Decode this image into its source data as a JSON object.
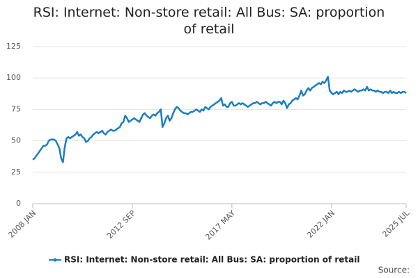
{
  "chart_data": {
    "type": "line",
    "title": "RSI: Internet: Non-store retail: All Bus: SA: proportion of retail",
    "source": "Source:",
    "categories": [
      "2008 JAN",
      null,
      null,
      null,
      null,
      null,
      null,
      null,
      null,
      null,
      null,
      null,
      null,
      null,
      null,
      null,
      null,
      null,
      null,
      null,
      null,
      null,
      null,
      null,
      null,
      null,
      null,
      null,
      null,
      null,
      null,
      null,
      null,
      null,
      null,
      null,
      null,
      null,
      null,
      null,
      null,
      null,
      null,
      null,
      null,
      null,
      null,
      null,
      null,
      null,
      null,
      null,
      null,
      null,
      null,
      null,
      "2012 SEP",
      null,
      null,
      null,
      null,
      null,
      null,
      null,
      null,
      null,
      null,
      null,
      null,
      null,
      null,
      null,
      null,
      null,
      null,
      null,
      null,
      null,
      null,
      null,
      null,
      null,
      null,
      null,
      null,
      null,
      null,
      null,
      null,
      null,
      null,
      null,
      null,
      null,
      null,
      null,
      null,
      null,
      null,
      null,
      null,
      null,
      null,
      null,
      null,
      null,
      null,
      null,
      null,
      null,
      null,
      null,
      "2017 MAY",
      null,
      null,
      null,
      null,
      null,
      null,
      null,
      null,
      null,
      null,
      null,
      null,
      null,
      null,
      null,
      null,
      null,
      null,
      null,
      null,
      null,
      null,
      null,
      null,
      null,
      null,
      null,
      null,
      null,
      null,
      null,
      null,
      null,
      null,
      null,
      null,
      null,
      null,
      null,
      null,
      null,
      null,
      null,
      null,
      null,
      null,
      null,
      null,
      null,
      null,
      null,
      null,
      null,
      null,
      null,
      "2022 JAN",
      null,
      null,
      null,
      null,
      null,
      null,
      null,
      null,
      null,
      null,
      null,
      null,
      null,
      null,
      null,
      null,
      null,
      null,
      null,
      null,
      null,
      null,
      null,
      null,
      null,
      null,
      null,
      null,
      null,
      null,
      null,
      null,
      null,
      null,
      null,
      null,
      null,
      null,
      null,
      null,
      null,
      "2025 JUL"
    ],
    "series": [
      {
        "name": "RSI: Internet: Non-store retail: All Bus: SA: proportion of retail",
        "color": "#1a7dc0",
        "values": [
          35,
          36,
          38,
          40,
          42,
          44,
          46,
          46,
          47,
          50,
          51,
          51,
          51,
          50,
          47,
          44,
          36,
          33,
          45,
          52,
          53,
          52,
          53,
          54,
          55,
          57,
          54,
          55,
          53,
          52,
          49,
          50,
          52,
          53,
          55,
          56,
          57,
          56,
          57,
          58,
          56,
          55,
          57,
          58,
          59,
          58,
          58,
          59,
          60,
          61,
          64,
          65,
          70,
          68,
          65,
          66,
          67,
          68,
          67,
          66,
          65,
          68,
          71,
          72,
          70,
          69,
          68,
          70,
          71,
          70,
          72,
          73,
          75,
          61,
          64,
          68,
          70,
          66,
          68,
          72,
          75,
          77,
          76,
          74,
          73,
          72,
          72,
          71,
          72,
          73,
          73,
          74,
          75,
          74,
          73,
          75,
          74,
          77,
          76,
          75,
          77,
          78,
          79,
          80,
          81,
          82,
          84,
          78,
          79,
          77,
          77,
          80,
          81,
          78,
          78,
          79,
          80,
          79,
          80,
          79,
          78,
          77,
          78,
          79,
          80,
          80,
          81,
          80,
          79,
          80,
          80,
          81,
          80,
          79,
          78,
          80,
          81,
          80,
          81,
          81,
          79,
          82,
          80,
          76,
          79,
          80,
          82,
          83,
          84,
          83,
          86,
          90,
          86,
          87,
          90,
          92,
          90,
          92,
          93,
          94,
          95,
          96,
          95,
          97,
          96,
          98,
          101,
          90,
          88,
          87,
          88,
          89,
          87,
          89,
          88,
          90,
          89,
          89,
          90,
          89,
          90,
          91,
          90,
          89,
          90,
          90,
          91,
          90,
          93,
          90,
          91,
          90,
          90,
          89,
          90,
          89,
          89,
          88,
          89,
          89,
          88,
          90,
          88,
          89,
          88,
          88,
          89,
          88,
          89,
          89,
          88
        ]
      }
    ],
    "ylim": [
      0,
      125
    ],
    "yticks": [
      0,
      25,
      50,
      75,
      100,
      125
    ],
    "grid": true
  }
}
